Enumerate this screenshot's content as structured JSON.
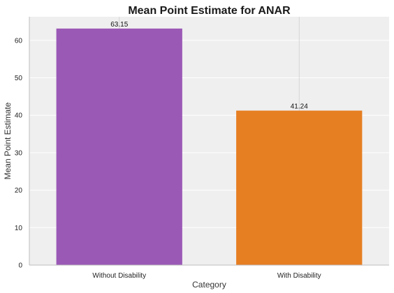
{
  "chart_data": {
    "type": "bar",
    "title": "Mean Point Estimate for ANAR",
    "xlabel": "Category",
    "ylabel": "Mean Point Estimate",
    "categories": [
      "Without Disability",
      "With Disability"
    ],
    "values": [
      63.15,
      41.24
    ],
    "value_labels": [
      "63.15",
      "41.24"
    ],
    "colors": [
      "#9b59b6",
      "#e67e22"
    ],
    "ylim": [
      0,
      66.3
    ],
    "yticks": [
      0,
      10,
      20,
      30,
      40,
      50,
      60
    ],
    "ytick_labels": [
      "0",
      "10",
      "20",
      "30",
      "40",
      "50",
      "60"
    ],
    "grid": true,
    "background": "#efefef"
  }
}
